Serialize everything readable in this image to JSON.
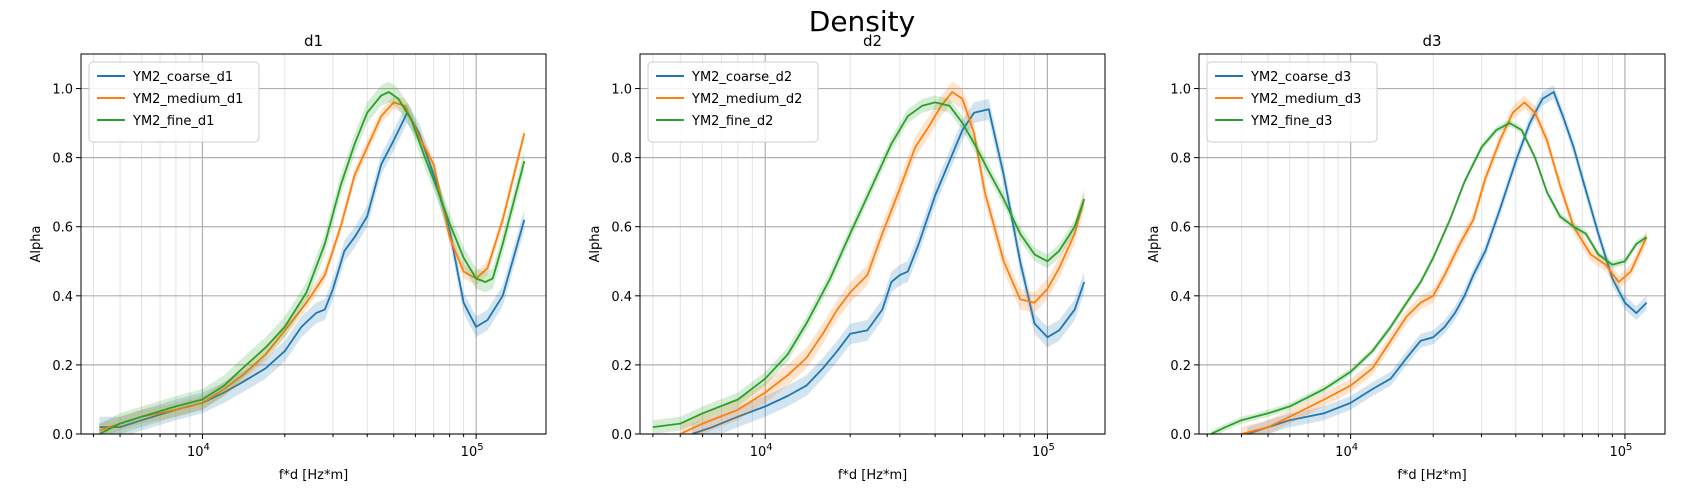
{
  "figure": {
    "suptitle": "Density"
  },
  "colors": {
    "coarse": "#1f77b4",
    "medium": "#ff7f0e",
    "fine": "#2ca02c",
    "grid_major": "#b0b0b0",
    "grid_minor": "#dddddd"
  },
  "chart_data": [
    {
      "type": "line",
      "title": "d1",
      "xlabel": "f*d [Hz*m]",
      "ylabel": "Alpha",
      "xscale": "log",
      "xlim": [
        3600,
        180000
      ],
      "ylim": [
        0,
        1.1
      ],
      "xticks": [
        {
          "value": 10000,
          "base": "10",
          "exp": "4"
        },
        {
          "value": 100000,
          "base": "10",
          "exp": "5"
        }
      ],
      "yticks": [
        "0.0",
        "0.2",
        "0.4",
        "0.6",
        "0.8",
        "1.0"
      ],
      "grid": true,
      "legend": "top-left",
      "series": [
        {
          "name": "YM2_coarse_d1",
          "color": "#1f77b4",
          "band": 0.03,
          "x": [
            4200,
            5000,
            6000,
            8000,
            10000,
            12000,
            14000,
            17000,
            20000,
            23000,
            26000,
            28000,
            30000,
            33000,
            36000,
            40000,
            45000,
            50000,
            56000,
            62000,
            70000,
            80000,
            90000,
            100000,
            110000,
            125000,
            150000
          ],
          "y": [
            0.02,
            0.02,
            0.04,
            0.07,
            0.09,
            0.12,
            0.15,
            0.19,
            0.24,
            0.31,
            0.35,
            0.36,
            0.42,
            0.53,
            0.57,
            0.63,
            0.78,
            0.85,
            0.93,
            0.87,
            0.75,
            0.59,
            0.38,
            0.31,
            0.33,
            0.4,
            0.62
          ]
        },
        {
          "name": "YM2_medium_d1",
          "color": "#ff7f0e",
          "band": 0.02,
          "x": [
            4200,
            5000,
            6000,
            8000,
            10000,
            12000,
            14000,
            17000,
            20000,
            24000,
            28000,
            32000,
            36000,
            40000,
            45000,
            50000,
            55000,
            62000,
            70000,
            80000,
            90000,
            100000,
            110000,
            125000,
            150000
          ],
          "y": [
            0.01,
            0.03,
            0.05,
            0.07,
            0.09,
            0.13,
            0.17,
            0.23,
            0.3,
            0.38,
            0.46,
            0.6,
            0.75,
            0.83,
            0.92,
            0.96,
            0.95,
            0.86,
            0.78,
            0.57,
            0.47,
            0.45,
            0.48,
            0.62,
            0.87
          ]
        },
        {
          "name": "YM2_fine_d1",
          "color": "#2ca02c",
          "band": 0.03,
          "x": [
            4200,
            5000,
            6000,
            8000,
            10000,
            12000,
            14000,
            17000,
            20000,
            24000,
            28000,
            32000,
            36000,
            40000,
            45000,
            48000,
            52000,
            58000,
            65000,
            72000,
            80000,
            90000,
            100000,
            108000,
            115000,
            125000,
            150000
          ],
          "y": [
            0.0,
            0.03,
            0.05,
            0.08,
            0.1,
            0.14,
            0.19,
            0.25,
            0.31,
            0.41,
            0.55,
            0.72,
            0.84,
            0.93,
            0.98,
            0.99,
            0.97,
            0.91,
            0.8,
            0.71,
            0.61,
            0.51,
            0.45,
            0.44,
            0.45,
            0.55,
            0.79
          ]
        }
      ]
    },
    {
      "type": "line",
      "title": "d2",
      "xlabel": "f*d [Hz*m]",
      "ylabel": "Alpha",
      "xscale": "log",
      "xlim": [
        3600,
        160000
      ],
      "ylim": [
        0,
        1.1
      ],
      "xticks": [
        {
          "value": 10000,
          "base": "10",
          "exp": "4"
        },
        {
          "value": 100000,
          "base": "10",
          "exp": "5"
        }
      ],
      "yticks": [
        "0.0",
        "0.2",
        "0.4",
        "0.6",
        "0.8",
        "1.0"
      ],
      "grid": true,
      "legend": "top-left",
      "series": [
        {
          "name": "YM2_coarse_d2",
          "color": "#1f77b4",
          "band": 0.03,
          "x": [
            5500,
            6500,
            8000,
            10000,
            12000,
            14000,
            16000,
            18000,
            20000,
            23000,
            26000,
            28000,
            30000,
            32000,
            35000,
            40000,
            45000,
            50000,
            55000,
            62000,
            70000,
            80000,
            90000,
            100000,
            110000,
            125000,
            135000
          ],
          "y": [
            0.0,
            0.02,
            0.05,
            0.08,
            0.11,
            0.14,
            0.19,
            0.24,
            0.29,
            0.3,
            0.36,
            0.44,
            0.46,
            0.47,
            0.55,
            0.69,
            0.79,
            0.88,
            0.93,
            0.94,
            0.75,
            0.5,
            0.32,
            0.28,
            0.3,
            0.36,
            0.44
          ]
        },
        {
          "name": "YM2_medium_d2",
          "color": "#ff7f0e",
          "band": 0.03,
          "x": [
            5000,
            6000,
            8000,
            10000,
            12000,
            14000,
            16000,
            18000,
            20000,
            23000,
            26000,
            30000,
            34000,
            38000,
            42000,
            46000,
            50000,
            55000,
            60000,
            70000,
            80000,
            90000,
            100000,
            110000,
            125000,
            135000
          ],
          "y": [
            0.0,
            0.03,
            0.07,
            0.12,
            0.17,
            0.22,
            0.29,
            0.36,
            0.41,
            0.46,
            0.58,
            0.71,
            0.83,
            0.89,
            0.95,
            0.99,
            0.97,
            0.87,
            0.7,
            0.5,
            0.39,
            0.38,
            0.42,
            0.48,
            0.58,
            0.68
          ]
        },
        {
          "name": "YM2_fine_d2",
          "color": "#2ca02c",
          "band": 0.02,
          "x": [
            4000,
            5000,
            6000,
            8000,
            10000,
            12000,
            14000,
            17000,
            20000,
            24000,
            28000,
            32000,
            36000,
            40000,
            45000,
            50000,
            56000,
            62000,
            70000,
            80000,
            90000,
            100000,
            110000,
            125000,
            135000
          ],
          "y": [
            0.02,
            0.03,
            0.06,
            0.1,
            0.16,
            0.23,
            0.32,
            0.45,
            0.58,
            0.72,
            0.84,
            0.92,
            0.95,
            0.96,
            0.95,
            0.9,
            0.83,
            0.76,
            0.68,
            0.58,
            0.52,
            0.5,
            0.53,
            0.6,
            0.68
          ]
        }
      ]
    },
    {
      "type": "line",
      "title": "d3",
      "xlabel": "f*d [Hz*m]",
      "ylabel": "Alpha",
      "xscale": "log",
      "xlim": [
        2800,
        140000
      ],
      "ylim": [
        0,
        1.1
      ],
      "xticks": [
        {
          "value": 10000,
          "base": "10",
          "exp": "4"
        },
        {
          "value": 100000,
          "base": "10",
          "exp": "5"
        }
      ],
      "yticks": [
        "0.0",
        "0.2",
        "0.4",
        "0.6",
        "0.8",
        "1.0"
      ],
      "grid": true,
      "legend": "top-left",
      "series": [
        {
          "name": "YM2_coarse_d3",
          "color": "#1f77b4",
          "band": 0.02,
          "x": [
            4200,
            5000,
            6000,
            8000,
            10000,
            12000,
            14000,
            16000,
            18000,
            20000,
            22000,
            24000,
            26000,
            28000,
            31000,
            35000,
            40000,
            45000,
            50000,
            55000,
            60000,
            65000,
            70000,
            80000,
            90000,
            100000,
            110000,
            120000
          ],
          "y": [
            0.0,
            0.02,
            0.04,
            0.06,
            0.09,
            0.13,
            0.16,
            0.22,
            0.27,
            0.28,
            0.31,
            0.35,
            0.4,
            0.46,
            0.53,
            0.65,
            0.79,
            0.9,
            0.97,
            0.99,
            0.91,
            0.83,
            0.74,
            0.58,
            0.45,
            0.38,
            0.35,
            0.38
          ]
        },
        {
          "name": "YM2_medium_d3",
          "color": "#ff7f0e",
          "band": 0.02,
          "x": [
            4000,
            5000,
            6000,
            8000,
            10000,
            12000,
            14000,
            16000,
            18000,
            20000,
            22000,
            25000,
            28000,
            31000,
            35000,
            39000,
            43000,
            47000,
            52000,
            58000,
            65000,
            75000,
            85000,
            95000,
            105000,
            120000
          ],
          "y": [
            0.0,
            0.02,
            0.05,
            0.1,
            0.14,
            0.19,
            0.27,
            0.34,
            0.38,
            0.4,
            0.46,
            0.55,
            0.62,
            0.74,
            0.85,
            0.93,
            0.96,
            0.93,
            0.85,
            0.72,
            0.6,
            0.52,
            0.49,
            0.44,
            0.47,
            0.57
          ]
        },
        {
          "name": "YM2_fine_d3",
          "color": "#2ca02c",
          "band": 0.01,
          "x": [
            3100,
            3500,
            4000,
            5000,
            6000,
            8000,
            10000,
            12000,
            14000,
            16000,
            18000,
            20000,
            23000,
            26000,
            30000,
            34000,
            38000,
            42000,
            47000,
            52000,
            58000,
            65000,
            72000,
            80000,
            90000,
            100000,
            110000,
            120000
          ],
          "y": [
            0.0,
            0.02,
            0.04,
            0.06,
            0.08,
            0.13,
            0.18,
            0.24,
            0.31,
            0.38,
            0.44,
            0.51,
            0.62,
            0.73,
            0.83,
            0.88,
            0.9,
            0.88,
            0.8,
            0.7,
            0.63,
            0.6,
            0.58,
            0.52,
            0.49,
            0.5,
            0.55,
            0.57
          ]
        }
      ]
    }
  ]
}
